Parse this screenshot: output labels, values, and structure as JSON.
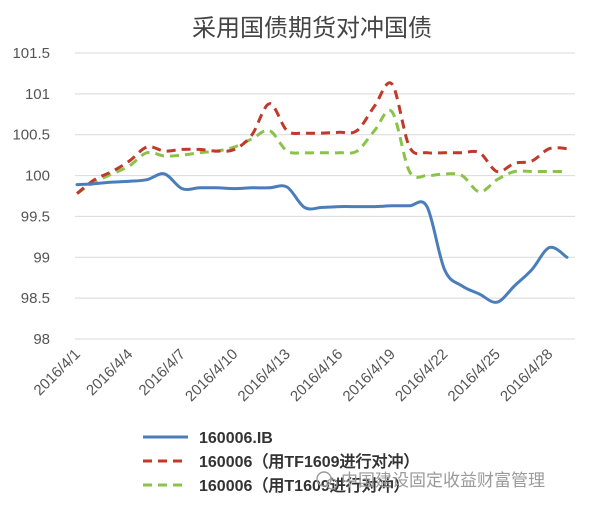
{
  "chart_data": {
    "type": "line",
    "title": "采用国债期货对冲国债",
    "xlabel": "",
    "ylabel": "",
    "ylim": [
      98,
      101.5
    ],
    "yticks": [
      "98",
      "98.5",
      "99",
      "99.5",
      "100",
      "100.5",
      "101",
      "101.5"
    ],
    "categories": [
      "2016/4/1",
      "2016/4/2",
      "2016/4/3",
      "2016/4/4",
      "2016/4/5",
      "2016/4/6",
      "2016/4/7",
      "2016/4/8",
      "2016/4/9",
      "2016/4/10",
      "2016/4/11",
      "2016/4/12",
      "2016/4/13",
      "2016/4/14",
      "2016/4/15",
      "2016/4/16",
      "2016/4/17",
      "2016/4/18",
      "2016/4/19",
      "2016/4/20",
      "2016/4/21",
      "2016/4/22",
      "2016/4/23",
      "2016/4/24",
      "2016/4/25",
      "2016/4/26",
      "2016/4/27",
      "2016/4/28",
      "2016/4/29",
      "2016/4/30"
    ],
    "xtick_labels": [
      "2016/4/1",
      "2016/4/4",
      "2016/4/7",
      "2016/4/10",
      "2016/4/13",
      "2016/4/16",
      "2016/4/19",
      "2016/4/22",
      "2016/4/25",
      "2016/4/28"
    ],
    "grid": true,
    "legend_position": "bottom",
    "series": [
      {
        "name": "160006.IB",
        "color": "#4a7ebb",
        "style": "solid",
        "values": [
          99.89,
          99.9,
          99.92,
          99.93,
          99.95,
          100.02,
          99.84,
          99.85,
          99.85,
          99.84,
          99.85,
          99.85,
          99.86,
          99.61,
          99.61,
          99.62,
          99.62,
          99.62,
          99.63,
          99.63,
          99.62,
          98.85,
          98.65,
          98.55,
          98.45,
          98.65,
          98.85,
          99.12,
          99.0,
          99.0
        ]
      },
      {
        "name": "160006（用TF1609进行对冲）",
        "color": "#c0392b",
        "style": "dashed",
        "values": [
          99.78,
          99.95,
          100.05,
          100.18,
          100.35,
          100.3,
          100.32,
          100.32,
          100.3,
          100.32,
          100.5,
          100.88,
          100.55,
          100.52,
          100.52,
          100.53,
          100.55,
          100.85,
          101.12,
          100.35,
          100.28,
          100.28,
          100.28,
          100.28,
          100.05,
          100.15,
          100.18,
          100.33,
          100.33,
          100.33
        ]
      },
      {
        "name": "160006（用T1609进行对冲）",
        "color": "#8bc34a",
        "style": "dashed",
        "values": [
          99.78,
          99.92,
          100.02,
          100.12,
          100.28,
          100.24,
          100.25,
          100.28,
          100.3,
          100.35,
          100.45,
          100.55,
          100.3,
          100.28,
          100.28,
          100.28,
          100.3,
          100.55,
          100.78,
          100.05,
          100.0,
          100.02,
          100.0,
          99.8,
          99.95,
          100.05,
          100.05,
          100.05,
          100.05,
          100.05
        ]
      }
    ]
  },
  "watermark": "中国建设固定收益财富管理"
}
